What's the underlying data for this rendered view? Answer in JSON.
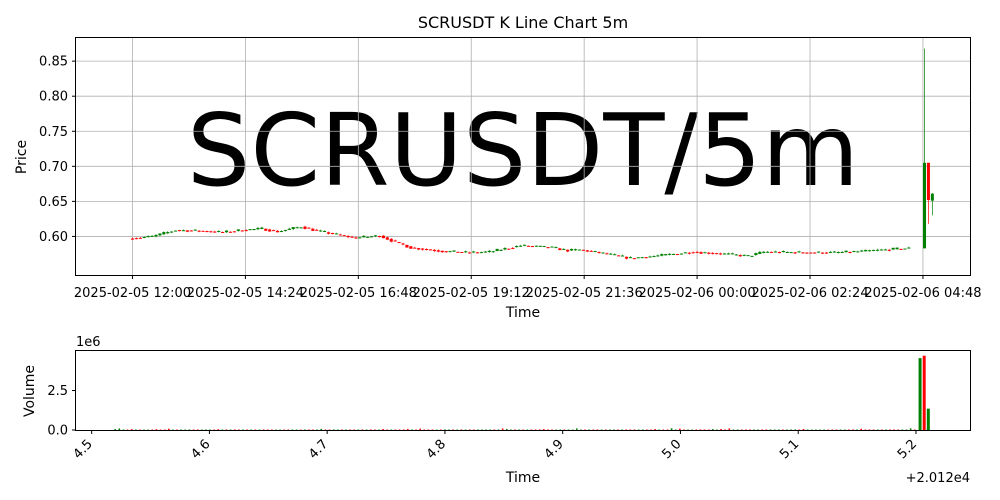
{
  "title": "SCRUSDT K Line Chart 5m",
  "watermark": "SCRUSDT/5m",
  "colors": {
    "up": "#008000",
    "down": "#ff0000",
    "grid": "#b0b0b0",
    "watermark": "#d9d9d9"
  },
  "chart_data": [
    {
      "type": "candlestick",
      "title": "SCRUSDT K Line Chart 5m",
      "xlabel": "Time",
      "ylabel": "Price",
      "grid": true,
      "ylim": [
        0.545,
        0.883
      ],
      "xlim": [
        "2025-02-05 10:48",
        "2025-02-06 05:48"
      ],
      "xticks": [
        "2025-02-05 12:00",
        "2025-02-05 14:24",
        "2025-02-05 16:48",
        "2025-02-05 19:12",
        "2025-02-05 21:36",
        "2025-02-06 00:00",
        "2025-02-06 02:24",
        "2025-02-06 04:48"
      ],
      "yticks": [
        "0.60",
        "0.65",
        "0.70",
        "0.75",
        "0.80",
        "0.85"
      ],
      "ytick_values": [
        0.6,
        0.65,
        0.7,
        0.75,
        0.8,
        0.85
      ],
      "price_path": [
        [
          "2025-02-05 12:00",
          0.597
        ],
        [
          "2025-02-05 12:30",
          0.6
        ],
        [
          "2025-02-05 13:00",
          0.609
        ],
        [
          "2025-02-05 13:30",
          0.608
        ],
        [
          "2025-02-05 14:00",
          0.606
        ],
        [
          "2025-02-05 14:24",
          0.609
        ],
        [
          "2025-02-05 14:50",
          0.611
        ],
        [
          "2025-02-05 15:10",
          0.607
        ],
        [
          "2025-02-05 15:40",
          0.614
        ],
        [
          "2025-02-05 16:00",
          0.608
        ],
        [
          "2025-02-05 16:48",
          0.598
        ],
        [
          "2025-02-05 17:20",
          0.601
        ],
        [
          "2025-02-05 17:40",
          0.592
        ],
        [
          "2025-02-05 18:00",
          0.584
        ],
        [
          "2025-02-05 18:40",
          0.579
        ],
        [
          "2025-02-05 19:12",
          0.577
        ],
        [
          "2025-02-05 19:40",
          0.578
        ],
        [
          "2025-02-05 20:20",
          0.587
        ],
        [
          "2025-02-05 21:00",
          0.584
        ],
        [
          "2025-02-05 21:20",
          0.58
        ],
        [
          "2025-02-05 21:36",
          0.581
        ],
        [
          "2025-02-05 22:10",
          0.575
        ],
        [
          "2025-02-05 22:40",
          0.569
        ],
        [
          "2025-02-05 23:20",
          0.573
        ],
        [
          "2025-02-06 00:00",
          0.578
        ],
        [
          "2025-02-06 00:40",
          0.575
        ],
        [
          "2025-02-06 01:10",
          0.572
        ],
        [
          "2025-02-06 01:30",
          0.578
        ],
        [
          "2025-02-06 02:24",
          0.577
        ],
        [
          "2025-02-06 03:00",
          0.577
        ],
        [
          "2025-02-06 03:40",
          0.579
        ],
        [
          "2025-02-06 04:30",
          0.583
        ]
      ],
      "spike_candles": [
        {
          "time": "2025-02-06 04:50",
          "open": 0.583,
          "high": 0.868,
          "low": 0.583,
          "close": 0.705
        },
        {
          "time": "2025-02-06 04:55",
          "open": 0.705,
          "high": 0.705,
          "low": 0.618,
          "close": 0.652
        },
        {
          "time": "2025-02-06 05:00",
          "open": 0.651,
          "high": 0.662,
          "low": 0.63,
          "close": 0.661
        }
      ]
    },
    {
      "type": "bar",
      "xlabel": "Time",
      "ylabel": "Volume",
      "ylim": [
        0,
        5000000
      ],
      "y_multiplier": "1e6",
      "yticks": [
        "0.0",
        "2.5"
      ],
      "ytick_values": [
        0,
        2500000
      ],
      "x_offset_label": "+2.012e4",
      "xticks": [
        "4.5",
        "4.6",
        "4.7",
        "4.8",
        "4.9",
        "5.0",
        "5.1",
        "5.2"
      ],
      "xtick_values": [
        4.5,
        4.6,
        4.7,
        4.8,
        4.9,
        5.0,
        5.1,
        5.2
      ],
      "xlim": [
        4.4867,
        5.2459
      ],
      "spike_volumes": [
        {
          "x": 5.2035,
          "volume": 4550000,
          "dir": "up"
        },
        {
          "x": 5.207,
          "volume": 4700000,
          "dir": "down"
        },
        {
          "x": 5.2105,
          "volume": 1350000,
          "dir": "up"
        }
      ]
    }
  ]
}
